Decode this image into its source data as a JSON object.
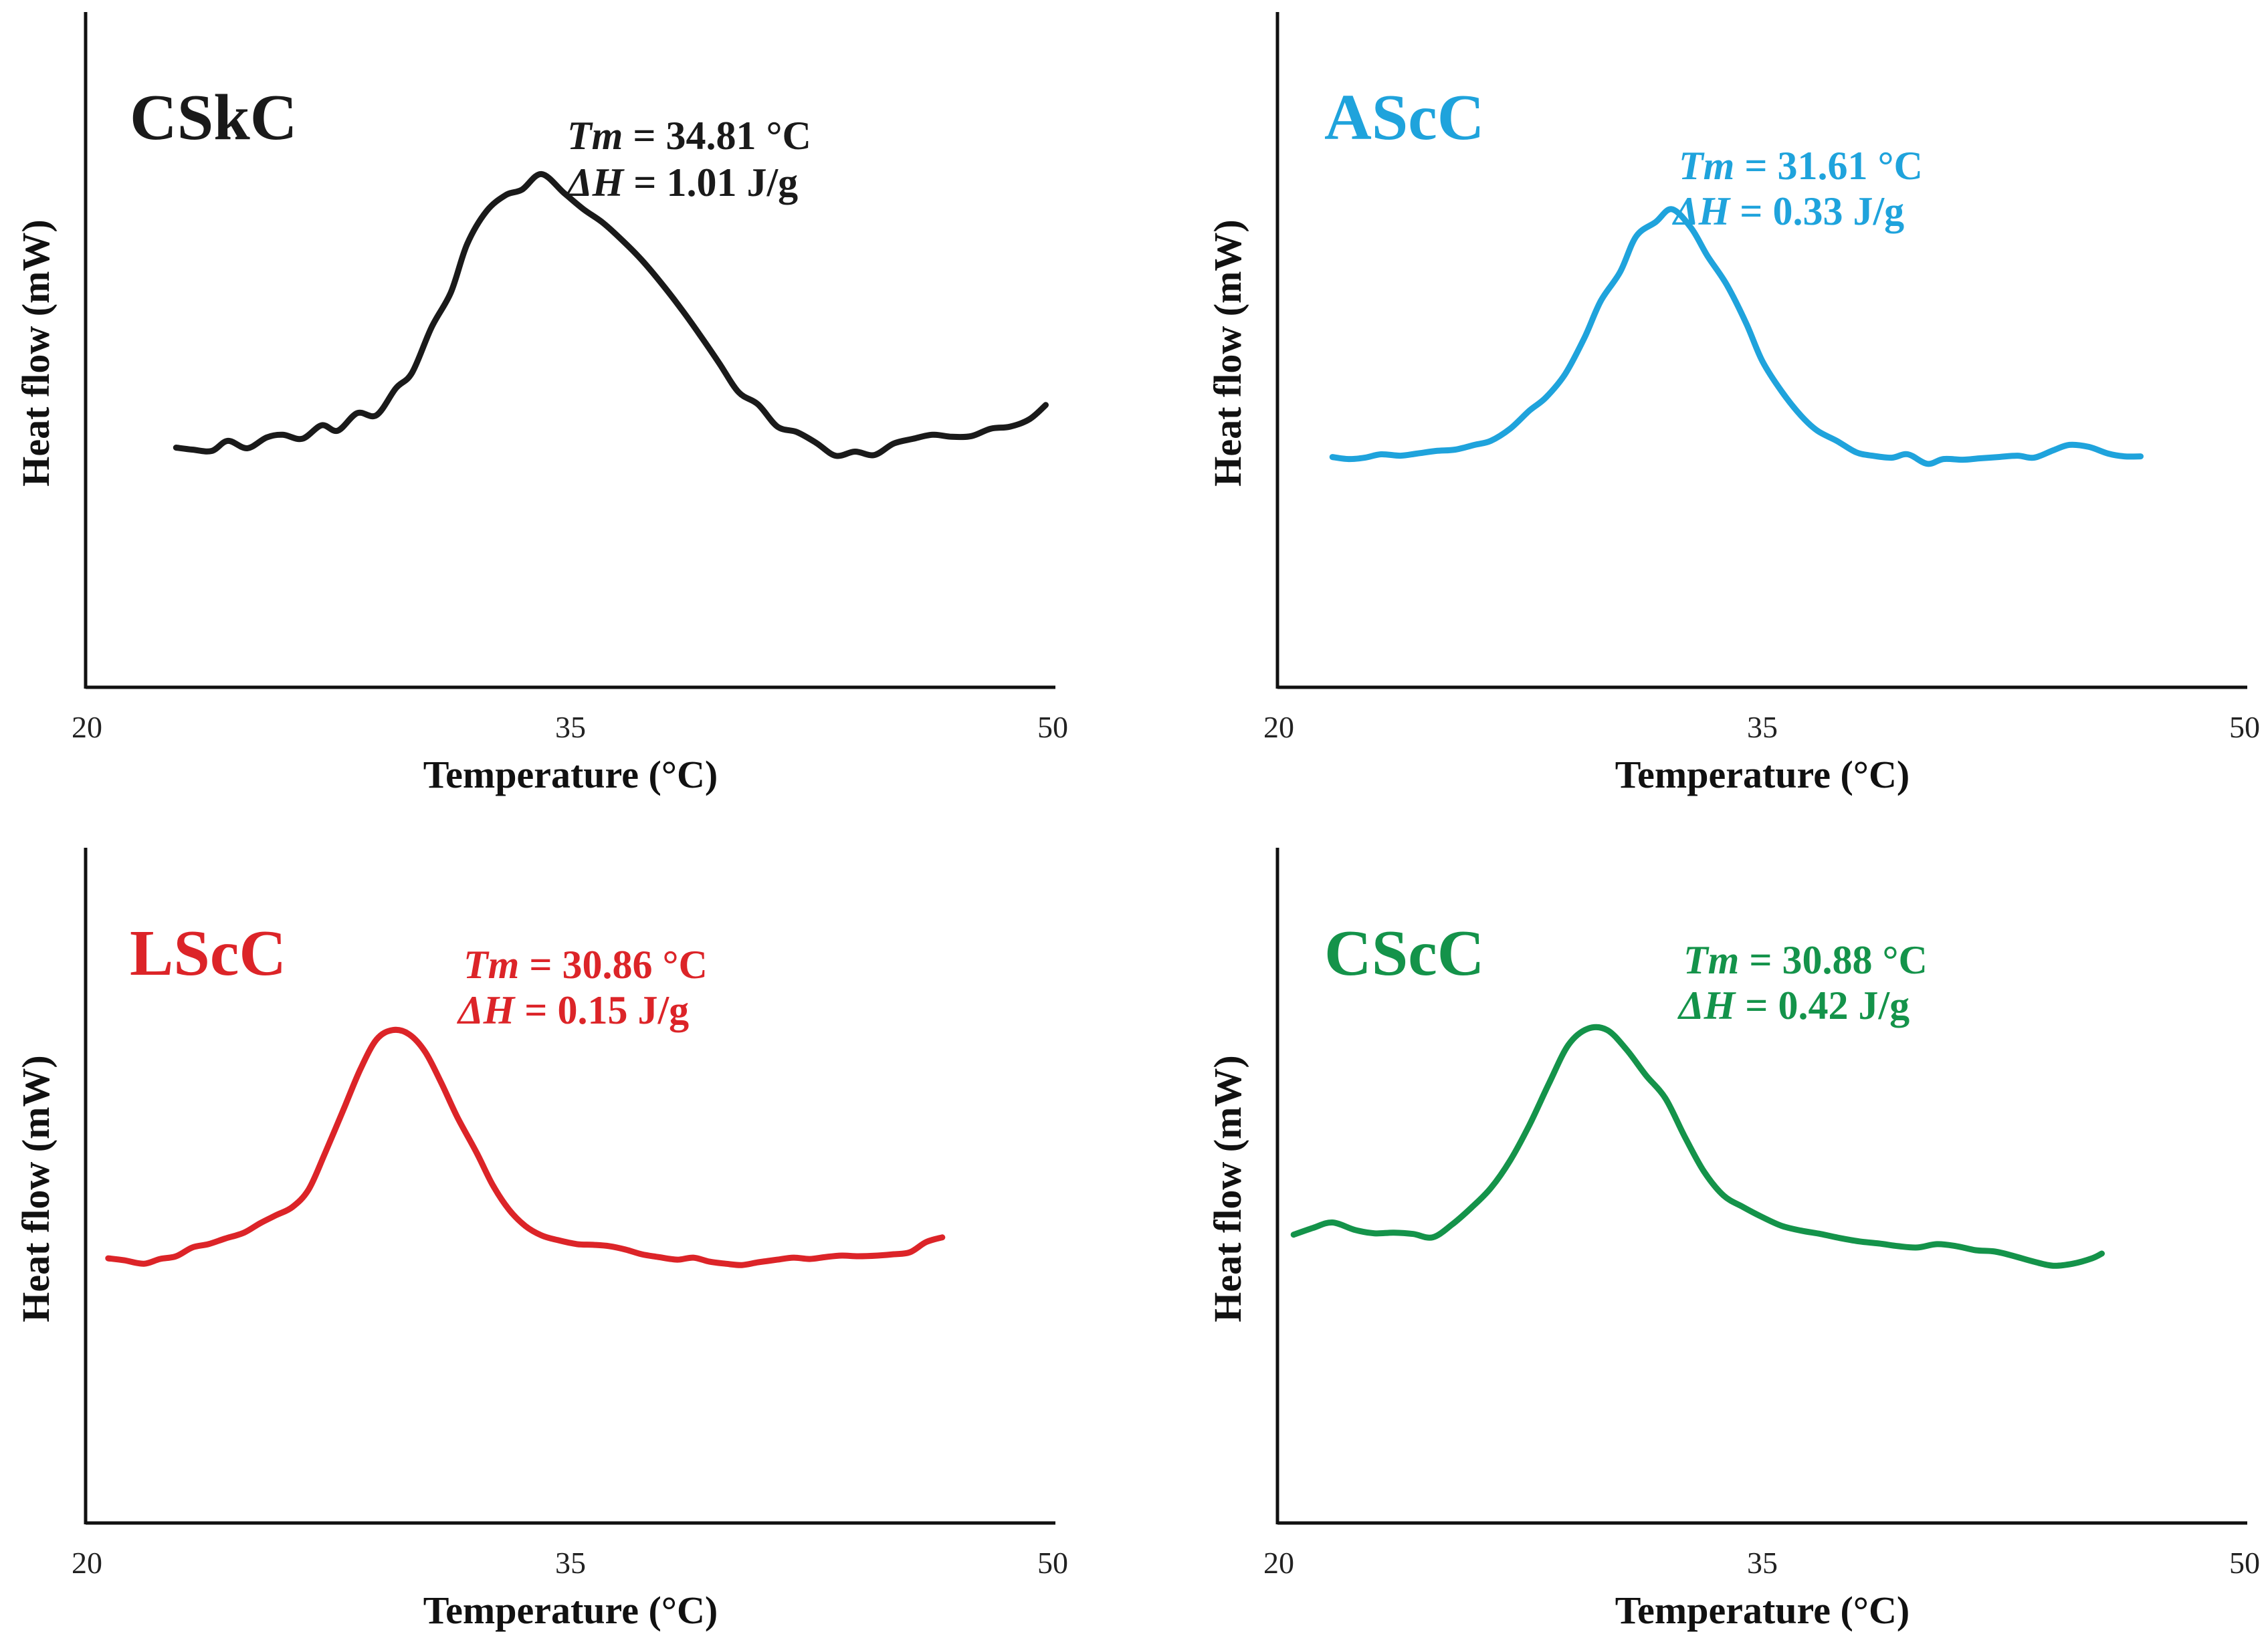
{
  "chart_data": [
    {
      "type": "line",
      "sample": "CSkC",
      "color": "#1a1a1a",
      "annotation": {
        "tm_symbol": "Tm",
        "tm_text": " = 34.81 °C",
        "dh_symbol": "ΔH",
        "dh_text": " = 1.01 J/g"
      },
      "xlabel": "Temperature (°C)",
      "ylabel": "Heat flow (mW)",
      "xlim": [
        20,
        50
      ],
      "ylim": [
        0,
        100
      ],
      "xticks": [
        "20",
        "35",
        "50"
      ],
      "series": [
        {
          "name": "CSkC",
          "x": [
            22.8,
            23.3,
            23.9,
            24.4,
            25.0,
            25.6,
            26.1,
            26.7,
            27.3,
            27.8,
            28.4,
            29.0,
            29.6,
            30.1,
            30.7,
            31.3,
            31.8,
            32.4,
            33.0,
            33.5,
            34.1,
            34.8,
            35.4,
            36.0,
            36.6,
            37.2,
            37.8,
            38.4,
            39.0,
            39.6,
            40.2,
            40.8,
            41.4,
            42.0,
            42.6,
            43.2,
            43.8,
            44.4,
            45.0,
            45.6,
            46.2,
            46.8,
            47.4,
            48.0,
            48.6,
            49.2,
            49.7
          ],
          "y": [
            35.5,
            35.2,
            35.0,
            36.5,
            35.4,
            37.0,
            37.4,
            36.8,
            38.8,
            38.0,
            40.6,
            40.3,
            44.3,
            46.6,
            53.3,
            58.5,
            65.6,
            70.5,
            72.9,
            73.7,
            76.0,
            73.2,
            70.8,
            68.8,
            66.2,
            63.3,
            59.9,
            56.2,
            52.2,
            48.0,
            43.7,
            41.9,
            38.6,
            37.8,
            36.2,
            34.3,
            34.9,
            34.4,
            36.1,
            36.8,
            37.4,
            37.1,
            37.2,
            38.3,
            38.6,
            39.7,
            41.8
          ]
        }
      ]
    },
    {
      "type": "line",
      "sample": "AScC",
      "color": "#1fa3dc",
      "annotation": {
        "tm_symbol": "Tm",
        "tm_text": " = 31.61 °C",
        "dh_symbol": "ΔH",
        "dh_text": " = 0.33 J/g"
      },
      "xlabel": "Temperature (°C)",
      "ylabel": "Heat flow (mW)",
      "xlim": [
        20,
        50
      ],
      "ylim": [
        0,
        100
      ],
      "xticks": [
        "20",
        "35",
        "50"
      ],
      "series": [
        {
          "name": "AScC",
          "x": [
            21.7,
            22.2,
            22.7,
            23.2,
            23.8,
            24.3,
            24.9,
            25.5,
            26.1,
            26.6,
            27.2,
            27.8,
            28.3,
            28.9,
            29.5,
            30.0,
            30.6,
            31.1,
            31.7,
            32.2,
            32.8,
            33.3,
            33.9,
            34.5,
            35.0,
            35.6,
            36.2,
            36.7,
            37.3,
            37.9,
            38.4,
            39.0,
            39.5,
            40.1,
            40.6,
            41.2,
            41.7,
            42.3,
            42.9,
            43.4,
            44.0,
            44.5,
            45.1,
            45.7,
            46.2,
            46.7
          ],
          "y": [
            34.1,
            33.8,
            34.0,
            34.5,
            34.3,
            34.6,
            35.0,
            35.2,
            35.9,
            36.5,
            38.3,
            41.0,
            42.9,
            46.4,
            51.8,
            57.2,
            61.5,
            66.8,
            68.9,
            70.8,
            68.0,
            63.9,
            59.6,
            53.9,
            48.3,
            43.8,
            40.2,
            38.0,
            36.5,
            34.8,
            34.3,
            34.0,
            34.5,
            33.1,
            33.8,
            33.7,
            33.9,
            34.1,
            34.3,
            34.0,
            35.1,
            35.9,
            35.6,
            34.6,
            34.2,
            34.2
          ]
        }
      ]
    },
    {
      "type": "line",
      "sample": "LScC",
      "color": "#dc2428",
      "annotation": {
        "tm_symbol": "Tm",
        "tm_text": " = 30.86 °C",
        "dh_symbol": "ΔH",
        "dh_text": " = 0.15 J/g"
      },
      "xlabel": "Temperature (°C)",
      "ylabel": "Heat flow (mW)",
      "xlim": [
        20,
        50
      ],
      "ylim": [
        0,
        100
      ],
      "xticks": [
        "20",
        "35",
        "50"
      ],
      "series": [
        {
          "name": "LScC",
          "x": [
            20.7,
            21.2,
            21.8,
            22.3,
            22.8,
            23.3,
            23.8,
            24.3,
            24.9,
            25.4,
            25.9,
            26.4,
            26.9,
            27.4,
            28.0,
            28.5,
            29.0,
            29.5,
            30.0,
            30.5,
            31.0,
            31.5,
            32.1,
            32.6,
            33.1,
            33.6,
            34.1,
            34.6,
            35.2,
            35.7,
            36.2,
            36.7,
            37.2,
            37.7,
            38.3,
            38.8,
            39.3,
            39.8,
            40.3,
            40.8,
            41.4,
            41.9,
            42.4,
            42.9,
            43.4,
            43.9,
            44.5,
            45.0,
            45.5,
            46.0,
            46.5
          ],
          "y": [
            39.2,
            38.9,
            38.4,
            39.1,
            39.5,
            40.8,
            41.3,
            42.1,
            43.0,
            44.4,
            45.6,
            46.8,
            49.4,
            54.7,
            61.5,
            67.2,
            71.6,
            73.0,
            72.4,
            69.8,
            65.2,
            60.1,
            54.8,
            50.0,
            46.4,
            44.0,
            42.6,
            41.9,
            41.3,
            41.2,
            41.0,
            40.5,
            39.8,
            39.4,
            39.0,
            39.3,
            38.7,
            38.4,
            38.2,
            38.6,
            39.0,
            39.3,
            39.1,
            39.4,
            39.6,
            39.5,
            39.6,
            39.8,
            40.1,
            41.6,
            42.3
          ]
        }
      ]
    },
    {
      "type": "line",
      "sample": "CScC",
      "color": "#14934a",
      "annotation": {
        "tm_symbol": "Tm",
        "tm_text": " = 30.88 °C",
        "dh_symbol": "ΔH",
        "dh_text": " = 0.42 J/g"
      },
      "xlabel": "Temperature (°C)",
      "ylabel": "Heat flow (mW)",
      "xlim": [
        20,
        50
      ],
      "ylim": [
        0,
        100
      ],
      "xticks": [
        "20",
        "35",
        "50"
      ],
      "series": [
        {
          "name": "CScC",
          "x": [
            20.5,
            21.1,
            21.7,
            22.4,
            23.0,
            23.6,
            24.2,
            24.8,
            25.4,
            26.0,
            26.6,
            27.2,
            27.8,
            28.4,
            29.0,
            29.6,
            30.2,
            30.8,
            31.4,
            32.0,
            32.6,
            33.2,
            33.8,
            34.4,
            35.0,
            35.6,
            36.2,
            36.8,
            37.4,
            38.0,
            38.6,
            39.2,
            39.8,
            40.4,
            41.0,
            41.6,
            42.2,
            42.8,
            43.4,
            44.0,
            44.6,
            45.2,
            45.5
          ],
          "y": [
            42.7,
            43.7,
            44.5,
            43.4,
            42.9,
            43.0,
            42.8,
            42.3,
            44.2,
            46.7,
            49.6,
            53.7,
            59.0,
            65.1,
            70.8,
            73.2,
            73.0,
            70.1,
            66.3,
            62.9,
            57.2,
            52.0,
            48.5,
            46.8,
            45.3,
            44.0,
            43.3,
            42.8,
            42.2,
            41.7,
            41.4,
            41.0,
            40.8,
            41.3,
            41.0,
            40.4,
            40.2,
            39.5,
            38.7,
            38.1,
            38.4,
            39.2,
            39.9
          ]
        }
      ]
    }
  ]
}
